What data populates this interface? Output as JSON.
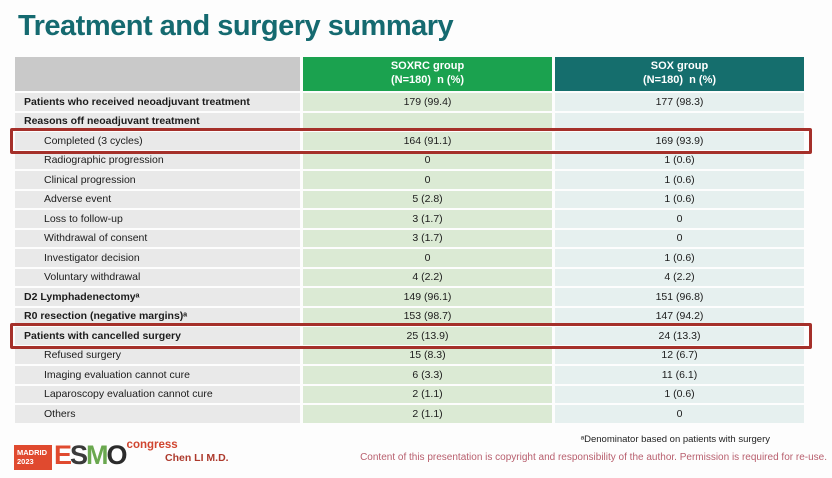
{
  "title": "Treatment and surgery summary",
  "table": {
    "columns": [
      {
        "name": "SOXRC group",
        "sub": "(N=180)  n (%)"
      },
      {
        "name": "SOX group",
        "sub": "(N=180)  n (%)"
      }
    ],
    "rows": [
      {
        "label": "Patients who received neoadjuvant treatment",
        "bold": true,
        "indent": false,
        "highlight": false,
        "soxrc": "179 (99.4)",
        "sox": "177 (98.3)"
      },
      {
        "label": "Reasons off neoadjuvant treatment",
        "bold": true,
        "indent": false,
        "highlight": false,
        "soxrc": "",
        "sox": ""
      },
      {
        "label": "Completed (3 cycles)",
        "bold": false,
        "indent": true,
        "highlight": true,
        "soxrc": "164 (91.1)",
        "sox": "169 (93.9)"
      },
      {
        "label": "Radiographic progression",
        "bold": false,
        "indent": true,
        "highlight": false,
        "soxrc": "0",
        "sox": "1 (0.6)"
      },
      {
        "label": "Clinical progression",
        "bold": false,
        "indent": true,
        "highlight": false,
        "soxrc": "0",
        "sox": "1 (0.6)"
      },
      {
        "label": "Adverse event",
        "bold": false,
        "indent": true,
        "highlight": false,
        "soxrc": "5 (2.8)",
        "sox": "1 (0.6)"
      },
      {
        "label": "Loss to follow-up",
        "bold": false,
        "indent": true,
        "highlight": false,
        "soxrc": "3 (1.7)",
        "sox": "0"
      },
      {
        "label": "Withdrawal of consent",
        "bold": false,
        "indent": true,
        "highlight": false,
        "soxrc": "3 (1.7)",
        "sox": "0"
      },
      {
        "label": "Investigator decision",
        "bold": false,
        "indent": true,
        "highlight": false,
        "soxrc": "0",
        "sox": "1 (0.6)"
      },
      {
        "label": "Voluntary withdrawal",
        "bold": false,
        "indent": true,
        "highlight": false,
        "soxrc": "4 (2.2)",
        "sox": "4 (2.2)"
      },
      {
        "label": "D2 Lymphadenectomyᵃ",
        "bold": true,
        "indent": false,
        "highlight": false,
        "soxrc": "149 (96.1)",
        "sox": "151 (96.8)"
      },
      {
        "label": "R0 resection (negative margins)ᵃ",
        "bold": true,
        "indent": false,
        "highlight": false,
        "soxrc": "153 (98.7)",
        "sox": "147 (94.2)"
      },
      {
        "label": "Patients with cancelled surgery",
        "bold": true,
        "indent": false,
        "highlight": true,
        "soxrc": "25 (13.9)",
        "sox": "24 (13.3)"
      },
      {
        "label": "Refused surgery",
        "bold": false,
        "indent": true,
        "highlight": false,
        "soxrc": "15 (8.3)",
        "sox": "12 (6.7)"
      },
      {
        "label": "Imaging evaluation cannot cure",
        "bold": false,
        "indent": true,
        "highlight": false,
        "soxrc": "6 (3.3)",
        "sox": "11 (6.1)"
      },
      {
        "label": "Laparoscopy evaluation cannot cure",
        "bold": false,
        "indent": true,
        "highlight": false,
        "soxrc": "2 (1.1)",
        "sox": "1 (0.6)"
      },
      {
        "label": "Others",
        "bold": false,
        "indent": true,
        "highlight": false,
        "soxrc": "2 (1.1)",
        "sox": "0"
      }
    ]
  },
  "footer": {
    "footnote": "ᵃDenominator based on patients with surgery",
    "author": "Chen LI M.D.",
    "copyright": "Content of this presentation is copyright and responsibility of the author. Permission is required for re-use.",
    "logo": {
      "city": "MADRID",
      "year": "2023",
      "letters": [
        "E",
        "S",
        "M",
        "O"
      ],
      "suffix": "congress"
    }
  },
  "colors": {
    "title": "#156a70",
    "soxrc_header_bg": "#1ba24f",
    "sox_header_bg": "#156e6d",
    "label_column_bg": "#e9e9e9",
    "soxrc_column_bg": "#dbead4",
    "sox_column_bg": "#e6f0ef",
    "highlight_border": "#a5302a",
    "copyright_text": "#b85f6e",
    "logo_red": "#e04a2f",
    "logo_green": "#6aa84f"
  }
}
